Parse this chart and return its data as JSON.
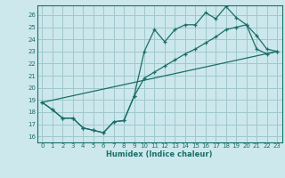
{
  "xlabel": "Humidex (Indice chaleur)",
  "bg_color": "#cce8ec",
  "grid_color": "#a0c8cc",
  "line_color": "#1a6e6a",
  "xlim": [
    -0.5,
    23.5
  ],
  "ylim": [
    15.5,
    26.8
  ],
  "yticks": [
    16,
    17,
    18,
    19,
    20,
    21,
    22,
    23,
    24,
    25,
    26
  ],
  "xticks": [
    0,
    1,
    2,
    3,
    4,
    5,
    6,
    7,
    8,
    9,
    10,
    11,
    12,
    13,
    14,
    15,
    16,
    17,
    18,
    19,
    20,
    21,
    22,
    23
  ],
  "line1_x": [
    0,
    1,
    2,
    3,
    4,
    5,
    6,
    7,
    8,
    9,
    10,
    11,
    12,
    13,
    14,
    15,
    16,
    17,
    18,
    19,
    20,
    21,
    22,
    23
  ],
  "line1_y": [
    18.8,
    18.2,
    17.5,
    17.5,
    16.7,
    16.5,
    16.3,
    17.2,
    17.3,
    19.3,
    23.0,
    24.8,
    23.8,
    24.8,
    25.2,
    25.2,
    26.2,
    25.7,
    26.7,
    25.8,
    25.2,
    24.3,
    23.2,
    23.0
  ],
  "line2_x": [
    0,
    1,
    2,
    3,
    4,
    5,
    6,
    7,
    8,
    9,
    10,
    11,
    12,
    13,
    14,
    15,
    16,
    17,
    18,
    19,
    20,
    21,
    22,
    23
  ],
  "line2_y": [
    18.8,
    18.2,
    17.5,
    17.5,
    16.7,
    16.5,
    16.3,
    17.2,
    17.3,
    19.3,
    20.8,
    21.3,
    21.8,
    22.3,
    22.8,
    23.2,
    23.7,
    24.2,
    24.8,
    25.0,
    25.2,
    23.2,
    22.8,
    23.0
  ],
  "line3_x": [
    0,
    23
  ],
  "line3_y": [
    18.8,
    23.0
  ]
}
